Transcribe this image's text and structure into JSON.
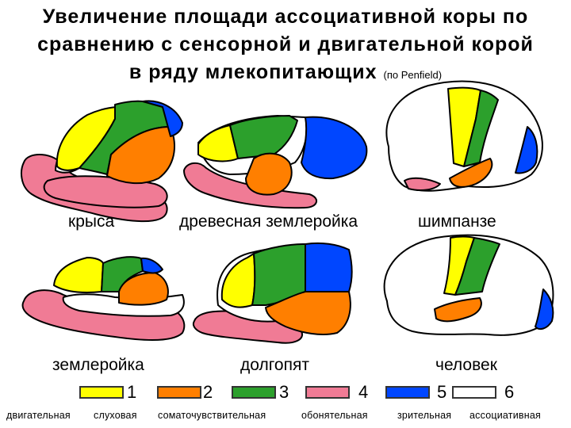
{
  "title": {
    "line1": "Увеличение площади ассоциативной коры по",
    "line2": "сравнению с сенсорной и двигательной корой",
    "line3": "в ряду млекопитающих",
    "source": "(по Penfield)"
  },
  "animals": {
    "rat": "крыса",
    "tree_shrew": "древесная землеройка",
    "chimpanzee": "шимпанзе",
    "shrew": "землеройка",
    "tarsier": "долгопят",
    "human": "человек"
  },
  "legend": [
    {
      "num": "1",
      "name": "двигательная",
      "color": "#ffff00"
    },
    {
      "num": "2",
      "name": "слуховая",
      "color": "#ff7f00"
    },
    {
      "num": "3",
      "name": "соматочувствительная",
      "color": "#2ca02c"
    },
    {
      "num": "4",
      "name": "обонятельная",
      "color": "#f07b95"
    },
    {
      "num": "5",
      "name": "зрительная",
      "color": "#0046ff"
    },
    {
      "num": "6",
      "name": "ассоциативная",
      "color": "#ffffff"
    }
  ]
}
